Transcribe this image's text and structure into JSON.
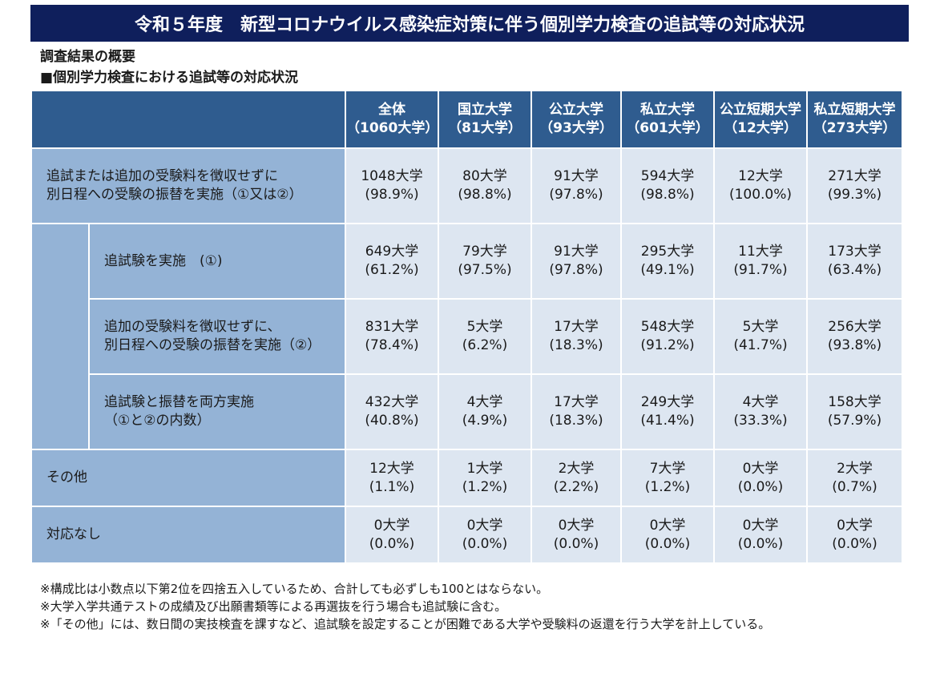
{
  "title": "令和５年度　新型コロナウイルス感染症対策に伴う個別学力検査の追試等の対応状況",
  "subtitles": [
    "調査結果の概要",
    "■個別学力検査における追試等の対応状況"
  ],
  "table": {
    "columns": [
      {
        "l1": "全体",
        "l2": "（1060大学）"
      },
      {
        "l1": "国立大学",
        "l2": "（81大学）"
      },
      {
        "l1": "公立大学",
        "l2": "（93大学）"
      },
      {
        "l1": "私立大学",
        "l2": "（601大学）"
      },
      {
        "l1": "公立短期大学",
        "l2": "（12大学）"
      },
      {
        "l1": "私立短期大学",
        "l2": "（273大学）"
      }
    ],
    "rows": [
      {
        "label": [
          "追試または追加の受験料を徴収せずに",
          "別日程への受験の振替を実施（①又は②）"
        ],
        "cells": [
          [
            "1048大学",
            "(98.9%)"
          ],
          [
            "80大学",
            "(98.8%)"
          ],
          [
            "91大学",
            "(97.8%)"
          ],
          [
            "594大学",
            "(98.8%)"
          ],
          [
            "12大学",
            "(100.0%)"
          ],
          [
            "271大学",
            "(99.3%)"
          ]
        ]
      },
      {
        "label": [
          "追試験を実施　(①)"
        ],
        "cells": [
          [
            "649大学",
            "(61.2%)"
          ],
          [
            "79大学",
            "(97.5%)"
          ],
          [
            "91大学",
            "(97.8%)"
          ],
          [
            "295大学",
            "(49.1%)"
          ],
          [
            "11大学",
            "(91.7%)"
          ],
          [
            "173大学",
            "(63.4%)"
          ]
        ]
      },
      {
        "label": [
          "追加の受験料を徴収せずに、",
          "別日程への受験の振替を実施（②）"
        ],
        "cells": [
          [
            "831大学",
            "(78.4%)"
          ],
          [
            "5大学",
            "(6.2%)"
          ],
          [
            "17大学",
            "(18.3%)"
          ],
          [
            "548大学",
            "(91.2%)"
          ],
          [
            "5大学",
            "(41.7%)"
          ],
          [
            "256大学",
            "(93.8%)"
          ]
        ]
      },
      {
        "label": [
          "追試験と振替を両方実施",
          "（①と②の内数）"
        ],
        "cells": [
          [
            "432大学",
            "(40.8%)"
          ],
          [
            "4大学",
            "(4.9%)"
          ],
          [
            "17大学",
            "(18.3%)"
          ],
          [
            "249大学",
            "(41.4%)"
          ],
          [
            "4大学",
            "(33.3%)"
          ],
          [
            "158大学",
            "(57.9%)"
          ]
        ]
      },
      {
        "label": [
          "その他"
        ],
        "cells": [
          [
            "12大学",
            "(1.1%)"
          ],
          [
            "1大学",
            "(1.2%)"
          ],
          [
            "2大学",
            "(2.2%)"
          ],
          [
            "7大学",
            "(1.2%)"
          ],
          [
            "0大学",
            "(0.0%)"
          ],
          [
            "2大学",
            "(0.7%)"
          ]
        ]
      },
      {
        "label": [
          "対応なし"
        ],
        "cells": [
          [
            "0大学",
            "(0.0%)"
          ],
          [
            "0大学",
            "(0.0%)"
          ],
          [
            "0大学",
            "(0.0%)"
          ],
          [
            "0大学",
            "(0.0%)"
          ],
          [
            "0大学",
            "(0.0%)"
          ],
          [
            "0大学",
            "(0.0%)"
          ]
        ]
      }
    ]
  },
  "notes": [
    "※構成比は小数点以下第2位を四捨五入しているため、合計しても必ずしも100とはならない。",
    "※大学入学共通テストの成績及び出願書類等による再選抜を行う場合も追試験に含む。",
    "※「その他」には、数日間の実技検査を課すなど、追試験を設定することが困難である大学や受験料の返還を行う大学を計上している。"
  ]
}
